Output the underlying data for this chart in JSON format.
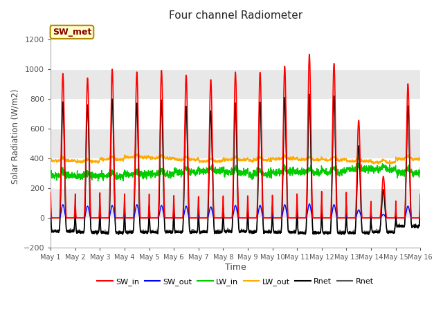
{
  "title": "Four channel Radiometer",
  "xlabel": "Time",
  "ylabel": "Solar Radiation (W/m2)",
  "ylim": [
    -200,
    1300
  ],
  "yticks": [
    -200,
    0,
    200,
    400,
    600,
    800,
    1000,
    1200
  ],
  "x_labels": [
    "May 1",
    "May 2",
    "May 3",
    "May 4",
    "May 5",
    "May 6",
    "May 7",
    "May 8",
    "May 9",
    "May 10",
    "May 11",
    "May 12",
    "May 13",
    "May 14",
    "May 15",
    "May 16"
  ],
  "colors": {
    "SW_in": "#ff0000",
    "SW_out": "#0000ff",
    "LW_in": "#00cc00",
    "LW_out": "#ffaa00",
    "Rnet1": "#000000",
    "Rnet2": "#555555"
  },
  "annotation_text": "SW_met",
  "annotation_bg": "#ffffcc",
  "annotation_border": "#aa8800",
  "bg_color": "#e8e8e8",
  "bg_band_color": "#f0f0f0",
  "peak_SW_in": [
    970,
    940,
    1000,
    980,
    990,
    960,
    930,
    980,
    980,
    1020,
    1100,
    1040,
    660,
    280,
    900
  ],
  "peak_Rnet": [
    780,
    760,
    800,
    770,
    790,
    750,
    720,
    770,
    780,
    810,
    830,
    820,
    490,
    190,
    750
  ],
  "night_Rnet": [
    -90,
    -95,
    -100,
    -95,
    -95,
    -95,
    -95,
    -90,
    -95,
    -95,
    -100,
    -100,
    -100,
    -95,
    -55
  ],
  "lw_in_base": [
    285,
    280,
    278,
    292,
    295,
    308,
    318,
    308,
    292,
    308,
    308,
    308,
    328,
    325,
    308
  ],
  "lw_out_base": [
    385,
    378,
    392,
    408,
    402,
    392,
    382,
    392,
    388,
    398,
    392,
    390,
    382,
    372,
    398
  ],
  "sw_out_peak": [
    90,
    80,
    85,
    90,
    85,
    80,
    75,
    85,
    85,
    90,
    95,
    90,
    55,
    25,
    80
  ]
}
